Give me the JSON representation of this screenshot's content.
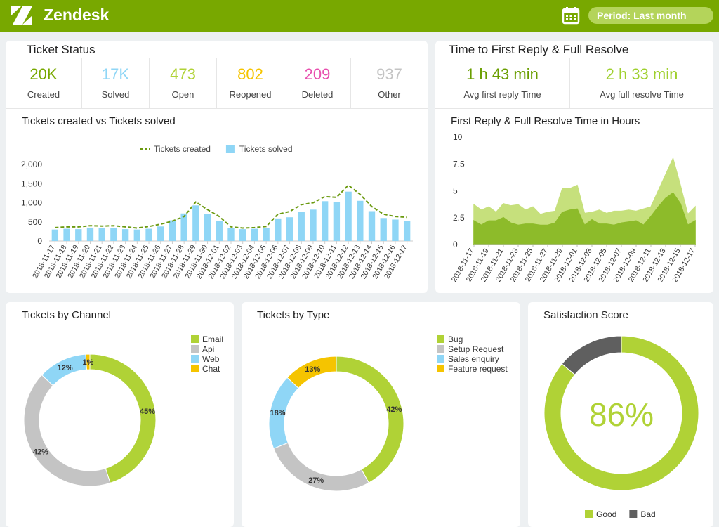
{
  "header": {
    "brand": "Zendesk",
    "period": "Period: Last month"
  },
  "ticket_status": {
    "title": "Ticket Status",
    "items": [
      {
        "value": "20K",
        "label": "Created",
        "color": "#78a800"
      },
      {
        "value": "17K",
        "label": "Solved",
        "color": "#8fd6f6"
      },
      {
        "value": "473",
        "label": "Open",
        "color": "#b0d236"
      },
      {
        "value": "802",
        "label": "Reopened",
        "color": "#f5c400"
      },
      {
        "value": "209",
        "label": "Deleted",
        "color": "#e84fae"
      },
      {
        "value": "937",
        "label": "Other",
        "color": "#c4c4c4"
      }
    ]
  },
  "resolve_time": {
    "title": "Time to First Reply & Full Resolve",
    "items": [
      {
        "value": "1 h 43 min",
        "label": "Avg first reply Time",
        "color": "#6a9e00"
      },
      {
        "value": "2 h 33 min",
        "label": "Avg full resolve Time",
        "color": "#9fd02e"
      }
    ]
  },
  "chart_data": [
    {
      "type": "bar_line",
      "title": "Tickets created vs Tickets solved",
      "categories": [
        "2018-11-17",
        "2018-11-18",
        "2018-11-19",
        "2018-11-20",
        "2018-11-21",
        "2018-11-22",
        "2018-11-23",
        "2018-11-24",
        "2018-11-25",
        "2018-11-26",
        "2018-11-27",
        "2018-11-28",
        "2018-11-29",
        "2018-11-30",
        "2018-12-01",
        "2018-12-02",
        "2018-12-03",
        "2018-12-04",
        "2018-12-05",
        "2018-12-06",
        "2018-12-07",
        "2018-12-08",
        "2018-12-09",
        "2018-12-10",
        "2018-12-11",
        "2018-12-12",
        "2018-12-13",
        "2018-12-14",
        "2018-12-15",
        "2018-12-16",
        "2018-12-17"
      ],
      "series": [
        {
          "name": "Tickets created",
          "color": "#6b9a10",
          "mark": "line",
          "values": [
            350,
            370,
            370,
            400,
            390,
            400,
            370,
            340,
            380,
            440,
            520,
            640,
            1020,
            820,
            640,
            370,
            340,
            350,
            380,
            700,
            770,
            950,
            1000,
            1160,
            1140,
            1460,
            1220,
            900,
            700,
            640,
            620
          ]
        },
        {
          "name": "Tickets solved",
          "color": "#8fd6f6",
          "mark": "bar",
          "values": [
            300,
            320,
            310,
            350,
            330,
            340,
            310,
            300,
            320,
            380,
            540,
            720,
            930,
            700,
            530,
            330,
            310,
            320,
            330,
            590,
            620,
            770,
            820,
            1040,
            1010,
            1290,
            1050,
            780,
            600,
            560,
            530
          ]
        }
      ],
      "ylim": [
        0,
        2000
      ],
      "yticks": [
        0,
        500,
        {
          "value": 1000,
          "label": "1,000"
        },
        {
          "value": 1500,
          "label": "1,500"
        },
        {
          "value": 2000,
          "label": "2,000"
        }
      ],
      "legend": "top"
    },
    {
      "type": "area",
      "title": "First Reply & Full Resolve Time in Hours",
      "categories": [
        "2018-11-17",
        null,
        "2018-11-19",
        null,
        "2018-11-21",
        null,
        "2018-11-23",
        null,
        "2018-11-25",
        null,
        "2018-11-27",
        null,
        "2018-11-29",
        null,
        "2018-12-01",
        null,
        "2018-12-03",
        null,
        "2018-12-05",
        null,
        "2018-12-07",
        null,
        "2018-12-09",
        null,
        "2018-12-11",
        null,
        "2018-12-13",
        null,
        "2018-12-15",
        null,
        "2018-12-17"
      ],
      "series": [
        {
          "color": "#c6e07c",
          "values": [
            3.7,
            3.2,
            3.5,
            3.0,
            3.8,
            3.6,
            3.7,
            3.2,
            3.5,
            2.8,
            3.0,
            3.1,
            5.2,
            5.2,
            5.5,
            2.9,
            3.0,
            3.2,
            2.9,
            3.1,
            3.1,
            3.2,
            3.1,
            3.3,
            3.5,
            5.0,
            6.5,
            8.0,
            5.5,
            2.8,
            3.5
          ]
        },
        {
          "color": "#8dbb2a",
          "values": [
            2.2,
            1.8,
            2.2,
            2.2,
            2.5,
            2.0,
            1.8,
            1.9,
            1.9,
            1.8,
            1.8,
            2.0,
            3.0,
            3.2,
            3.3,
            1.8,
            2.3,
            1.9,
            1.9,
            1.8,
            2.0,
            2.1,
            2.2,
            1.8,
            2.6,
            3.5,
            4.3,
            4.8,
            3.8,
            1.8,
            2.2
          ]
        }
      ],
      "ylim": [
        0,
        10
      ],
      "yticks": [
        0,
        2.5,
        5,
        7.5,
        10
      ]
    },
    {
      "type": "donut",
      "title": "Tickets by Channel",
      "categories": [
        "Email",
        "Api",
        "Web",
        "Chat"
      ],
      "values": [
        45,
        42,
        12,
        1
      ],
      "value_labels": [
        "45%",
        "42%",
        "12%",
        "1%"
      ],
      "colors": [
        "#b0d236",
        "#c4c4c4",
        "#8fd6f6",
        "#f5c400"
      ],
      "legend": "top-right",
      "labels": "ring"
    },
    {
      "type": "donut",
      "title": "Tickets by Type",
      "categories": [
        "Bug",
        "Setup Request",
        "Sales enquiry",
        "Feature request"
      ],
      "values": [
        42,
        27,
        18,
        13
      ],
      "value_labels": [
        "42%",
        "27%",
        "18%",
        "13%"
      ],
      "colors": [
        "#b0d236",
        "#c4c4c4",
        "#8fd6f6",
        "#f5c400"
      ],
      "legend": "top-right",
      "labels": "ring"
    },
    {
      "type": "donut",
      "title": "Satisfaction Score",
      "categories": [
        "Good",
        "Bad"
      ],
      "values": [
        86,
        14
      ],
      "value_labels": [
        "86%",
        null
      ],
      "colors": [
        "#b0d236",
        "#5f5f5f"
      ],
      "legend": "bottom",
      "labels": "center"
    }
  ]
}
